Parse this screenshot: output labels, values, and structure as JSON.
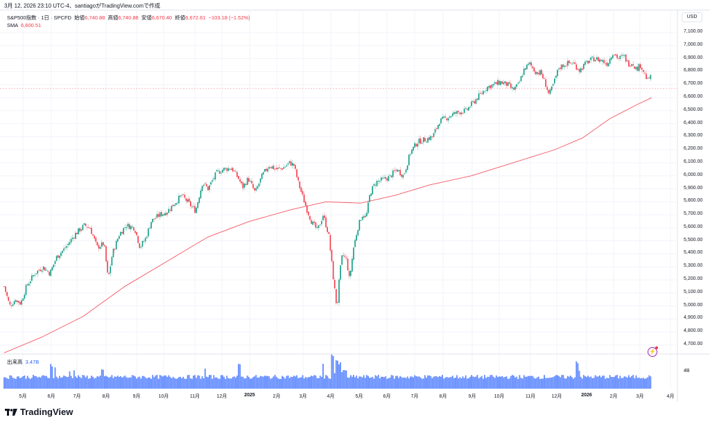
{
  "caption": "3月 12, 2026 23:10 UTC-4、santiagoがTradingView.comで作成",
  "legend": {
    "symbol": "S&P500指数 · 1日 · SPCFD",
    "open_label": "始値",
    "open": "6,740.88",
    "high_label": "高値",
    "high": "6,740.88",
    "low_label": "安値",
    "low": "6,670.40",
    "close_label": "終値",
    "close": "6,672.61",
    "change": "−103.18 (−1.52%)",
    "sma_label": "SMA",
    "sma_value": "6,600.51"
  },
  "volume_legend": {
    "label": "出来高",
    "value": "3.47B"
  },
  "price_axis": {
    "currency": "USD",
    "ticks": [
      "7,100.00",
      "7,000.00",
      "6,900.00",
      "6,800.00",
      "6,700.00",
      "6,600.00",
      "6,500.00",
      "6,400.00",
      "6,300.00",
      "6,200.00",
      "6,100.00",
      "6,000.00",
      "5,900.00",
      "5,800.00",
      "5,700.00",
      "5,600.00",
      "5,500.00",
      "5,400.00",
      "5,300.00",
      "5,200.00",
      "5,100.00",
      "5,000.00",
      "4,900.00",
      "4,800.00",
      "4,700.00"
    ]
  },
  "volume_axis": {
    "tick": "4B"
  },
  "time_axis": [
    {
      "label": "5月",
      "x": 33
    },
    {
      "label": "6月",
      "x": 74
    },
    {
      "label": "7月",
      "x": 111
    },
    {
      "label": "8月",
      "x": 153
    },
    {
      "label": "9月",
      "x": 197
    },
    {
      "label": "10月",
      "x": 236
    },
    {
      "label": "11月",
      "x": 281
    },
    {
      "label": "12月",
      "x": 320
    },
    {
      "label": "2025",
      "x": 360,
      "bold": true
    },
    {
      "label": "2月",
      "x": 399
    },
    {
      "label": "3月",
      "x": 437
    },
    {
      "label": "4月",
      "x": 477
    },
    {
      "label": "5月",
      "x": 518
    },
    {
      "label": "6月",
      "x": 558
    },
    {
      "label": "7月",
      "x": 598
    },
    {
      "label": "8月",
      "x": 639
    },
    {
      "label": "9月",
      "x": 681
    },
    {
      "label": "10月",
      "x": 720
    },
    {
      "label": "11月",
      "x": 765
    },
    {
      "label": "12月",
      "x": 803
    },
    {
      "label": "2026",
      "x": 846,
      "bold": true
    },
    {
      "label": "2月",
      "x": 885
    },
    {
      "label": "3月",
      "x": 923
    },
    {
      "label": "4月",
      "x": 967
    }
  ],
  "brand": {
    "name": "TradingView"
  },
  "colors": {
    "up": "#089981",
    "down": "#f23645",
    "sma": "#f23645",
    "volume": "#2962ff",
    "grid": "#f0f3fa"
  },
  "chart_data": {
    "type": "candlestick",
    "title": "S&P500指数 · 1日 · SPCFD",
    "ylabel": "USD",
    "ylim": [
      4650,
      7150
    ],
    "grid": true,
    "x_range": [
      "2024-04",
      "2026-03-12"
    ],
    "last": {
      "open": 6740.88,
      "high": 6740.88,
      "low": 6670.4,
      "close": 6672.61,
      "change": -103.18,
      "change_pct": -1.52
    },
    "sma_last": 6600.51,
    "volume_last": "3.47B",
    "price_path": [
      [
        6,
        5150
      ],
      [
        14,
        5000
      ],
      [
        22,
        5050
      ],
      [
        30,
        5020
      ],
      [
        38,
        5150
      ],
      [
        50,
        5250
      ],
      [
        62,
        5300
      ],
      [
        72,
        5250
      ],
      [
        82,
        5380
      ],
      [
        95,
        5450
      ],
      [
        108,
        5550
      ],
      [
        122,
        5620
      ],
      [
        130,
        5600
      ],
      [
        140,
        5450
      ],
      [
        150,
        5480
      ],
      [
        156,
        5200
      ],
      [
        162,
        5400
      ],
      [
        172,
        5550
      ],
      [
        182,
        5620
      ],
      [
        194,
        5600
      ],
      [
        202,
        5450
      ],
      [
        210,
        5520
      ],
      [
        218,
        5650
      ],
      [
        230,
        5700
      ],
      [
        240,
        5720
      ],
      [
        252,
        5790
      ],
      [
        262,
        5850
      ],
      [
        272,
        5790
      ],
      [
        282,
        5730
      ],
      [
        292,
        5950
      ],
      [
        300,
        5900
      ],
      [
        312,
        6020
      ],
      [
        322,
        6050
      ],
      [
        334,
        6060
      ],
      [
        344,
        5980
      ],
      [
        350,
        5910
      ],
      [
        358,
        5980
      ],
      [
        368,
        5870
      ],
      [
        378,
        6000
      ],
      [
        388,
        6080
      ],
      [
        398,
        6050
      ],
      [
        408,
        6060
      ],
      [
        418,
        6100
      ],
      [
        424,
        6080
      ],
      [
        430,
        5950
      ],
      [
        436,
        5850
      ],
      [
        442,
        5750
      ],
      [
        450,
        5640
      ],
      [
        458,
        5580
      ],
      [
        466,
        5700
      ],
      [
        474,
        5550
      ],
      [
        482,
        5150
      ],
      [
        486,
        4980
      ],
      [
        490,
        5250
      ],
      [
        494,
        5400
      ],
      [
        500,
        5350
      ],
      [
        504,
        5200
      ],
      [
        510,
        5450
      ],
      [
        516,
        5600
      ],
      [
        522,
        5700
      ],
      [
        528,
        5680
      ],
      [
        534,
        5870
      ],
      [
        542,
        5950
      ],
      [
        552,
        5970
      ],
      [
        562,
        5990
      ],
      [
        572,
        6050
      ],
      [
        582,
        6000
      ],
      [
        592,
        6180
      ],
      [
        602,
        6260
      ],
      [
        614,
        6280
      ],
      [
        624,
        6300
      ],
      [
        634,
        6420
      ],
      [
        642,
        6440
      ],
      [
        652,
        6470
      ],
      [
        662,
        6490
      ],
      [
        672,
        6500
      ],
      [
        682,
        6560
      ],
      [
        692,
        6620
      ],
      [
        702,
        6680
      ],
      [
        712,
        6700
      ],
      [
        722,
        6720
      ],
      [
        732,
        6700
      ],
      [
        740,
        6660
      ],
      [
        748,
        6700
      ],
      [
        756,
        6820
      ],
      [
        764,
        6860
      ],
      [
        772,
        6800
      ],
      [
        780,
        6790
      ],
      [
        786,
        6720
      ],
      [
        792,
        6620
      ],
      [
        798,
        6700
      ],
      [
        806,
        6830
      ],
      [
        816,
        6860
      ],
      [
        826,
        6870
      ],
      [
        836,
        6810
      ],
      [
        846,
        6870
      ],
      [
        856,
        6900
      ],
      [
        866,
        6890
      ],
      [
        876,
        6860
      ],
      [
        884,
        6950
      ],
      [
        892,
        6900
      ],
      [
        900,
        6920
      ],
      [
        906,
        6860
      ],
      [
        912,
        6870
      ],
      [
        918,
        6820
      ],
      [
        924,
        6850
      ],
      [
        930,
        6780
      ],
      [
        934,
        6730
      ],
      [
        938,
        6772
      ],
      [
        940,
        6673
      ]
    ],
    "sma_path": [
      [
        6,
        4640
      ],
      [
        60,
        4760
      ],
      [
        120,
        4920
      ],
      [
        180,
        5150
      ],
      [
        240,
        5340
      ],
      [
        300,
        5530
      ],
      [
        360,
        5650
      ],
      [
        420,
        5740
      ],
      [
        470,
        5800
      ],
      [
        520,
        5790
      ],
      [
        570,
        5850
      ],
      [
        620,
        5930
      ],
      [
        680,
        6000
      ],
      [
        740,
        6100
      ],
      [
        800,
        6200
      ],
      [
        840,
        6290
      ],
      [
        880,
        6440
      ],
      [
        920,
        6550
      ],
      [
        940,
        6600
      ]
    ],
    "volume_bars_note": "daily volume histogram, typical ~4B with spikes near 2024-06, 2025-04, 2025-12"
  }
}
